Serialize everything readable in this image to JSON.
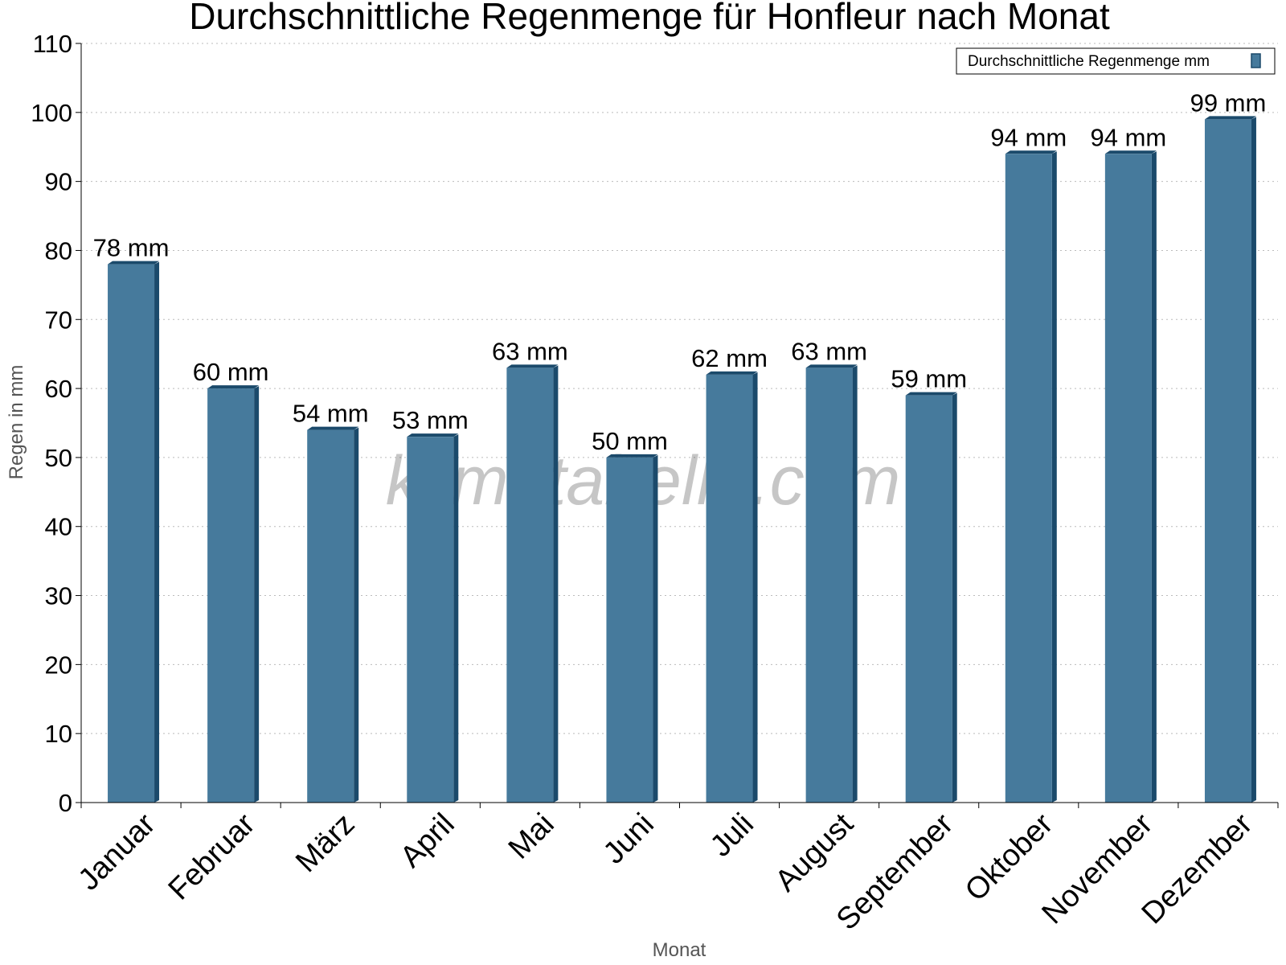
{
  "chart_data": {
    "type": "bar",
    "title": "Durchschnittliche Regenmenge für Honfleur nach Monat",
    "xlabel": "Monat",
    "ylabel": "Regen in mm",
    "categories": [
      "Januar",
      "Februar",
      "März",
      "April",
      "Mai",
      "Juni",
      "Juli",
      "August",
      "September",
      "Oktober",
      "November",
      "Dezember"
    ],
    "series": [
      {
        "name": "Durchschnittliche Regenmenge mm",
        "values": [
          78,
          60,
          54,
          53,
          63,
          50,
          62,
          63,
          59,
          94,
          94,
          99
        ],
        "labels": [
          "78 mm",
          "60 mm",
          "54 mm",
          "53 mm",
          "63 mm",
          "50 mm",
          "62 mm",
          "63 mm",
          "59 mm",
          "94 mm",
          "94 mm",
          "99 mm"
        ],
        "color": "#467a9c",
        "shadow_color": "#1b4a6b"
      }
    ],
    "ylim": [
      0,
      110
    ],
    "yticks": [
      0,
      10,
      20,
      30,
      40,
      50,
      60,
      70,
      80,
      90,
      100,
      110
    ],
    "grid": true,
    "legend_position": "top-right",
    "watermark": "klimatabelle.com"
  }
}
